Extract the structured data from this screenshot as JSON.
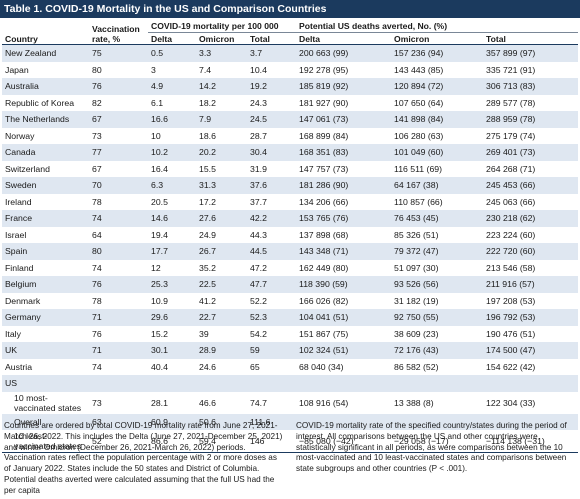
{
  "title": "Table 1. COVID-19 Mortality in the US and Comparison Countries",
  "headers": {
    "country": "Country",
    "vaccination": "Vaccination rate, %",
    "mortality_group": "COVID-19 mortality per 100 000",
    "averted_group": "Potential US deaths averted, No. (%)",
    "sub": [
      "Delta",
      "Omicron",
      "Total",
      "Delta",
      "Omicron",
      "Total"
    ]
  },
  "rows": [
    {
      "country": "New Zealand",
      "vax": "75",
      "d": "0.5",
      "o": "3.3",
      "t": "3.7",
      "ad": "200 663 (99)",
      "ao": "157 236 (94)",
      "at": "357 899 (97)"
    },
    {
      "country": "Japan",
      "vax": "80",
      "d": "3",
      "o": "7.4",
      "t": "10.4",
      "ad": "192 278 (95)",
      "ao": "143 443 (85)",
      "at": "335 721 (91)"
    },
    {
      "country": "Australia",
      "vax": "76",
      "d": "4.9",
      "o": "14.2",
      "t": "19.2",
      "ad": "185 819 (92)",
      "ao": "120 894 (72)",
      "at": "306 713 (83)"
    },
    {
      "country": "Republic of Korea",
      "vax": "82",
      "d": "6.1",
      "o": "18.2",
      "t": "24.3",
      "ad": "181 927 (90)",
      "ao": "107 650 (64)",
      "at": "289 577 (78)"
    },
    {
      "country": "The Netherlands",
      "vax": "67",
      "d": "16.6",
      "o": "7.9",
      "t": "24.5",
      "ad": "147 061 (73)",
      "ao": "141 898 (84)",
      "at": "288 959 (78)"
    },
    {
      "country": "Norway",
      "vax": "73",
      "d": "10",
      "o": "18.6",
      "t": "28.7",
      "ad": "168 899 (84)",
      "ao": "106 280 (63)",
      "at": "275 179 (74)"
    },
    {
      "country": "Canada",
      "vax": "77",
      "d": "10.2",
      "o": "20.2",
      "t": "30.4",
      "ad": "168 351 (83)",
      "ao": "101 049 (60)",
      "at": "269 401 (73)"
    },
    {
      "country": "Switzerland",
      "vax": "67",
      "d": "16.4",
      "o": "15.5",
      "t": "31.9",
      "ad": "147 757 (73)",
      "ao": "116 511 (69)",
      "at": "264 268 (71)"
    },
    {
      "country": "Sweden",
      "vax": "70",
      "d": "6.3",
      "o": "31.3",
      "t": "37.6",
      "ad": "181 286 (90)",
      "ao": "64 167 (38)",
      "at": "245 453 (66)"
    },
    {
      "country": "Ireland",
      "vax": "78",
      "d": "20.5",
      "o": "17.2",
      "t": "37.7",
      "ad": "134 206 (66)",
      "ao": "110 857 (66)",
      "at": "245 063 (66)"
    },
    {
      "country": "France",
      "vax": "74",
      "d": "14.6",
      "o": "27.6",
      "t": "42.2",
      "ad": "153 765 (76)",
      "ao": "76 453 (45)",
      "at": "230 218 (62)"
    },
    {
      "country": "Israel",
      "vax": "64",
      "d": "19.4",
      "o": "24.9",
      "t": "44.3",
      "ad": "137 898 (68)",
      "ao": "85 326 (51)",
      "at": "223 224 (60)"
    },
    {
      "country": "Spain",
      "vax": "80",
      "d": "17.7",
      "o": "26.7",
      "t": "44.5",
      "ad": "143 348 (71)",
      "ao": "79 372 (47)",
      "at": "222 720 (60)"
    },
    {
      "country": "Finland",
      "vax": "74",
      "d": "12",
      "o": "35.2",
      "t": "47.2",
      "ad": "162 449 (80)",
      "ao": "51 097 (30)",
      "at": "213 546 (58)"
    },
    {
      "country": "Belgium",
      "vax": "76",
      "d": "25.3",
      "o": "22.5",
      "t": "47.7",
      "ad": "118 390 (59)",
      "ao": "93 526 (56)",
      "at": "211 916 (57)"
    },
    {
      "country": "Denmark",
      "vax": "78",
      "d": "10.9",
      "o": "41.2",
      "t": "52.2",
      "ad": "166 026 (82)",
      "ao": "31 182 (19)",
      "at": "197 208 (53)"
    },
    {
      "country": "Germany",
      "vax": "71",
      "d": "29.6",
      "o": "22.7",
      "t": "52.3",
      "ad": "104 041 (51)",
      "ao": "92 750 (55)",
      "at": "196 792 (53)"
    },
    {
      "country": "Italy",
      "vax": "76",
      "d": "15.2",
      "o": "39",
      "t": "54.2",
      "ad": "151 867 (75)",
      "ao": "38 609 (23)",
      "at": "190 476 (51)"
    },
    {
      "country": "UK",
      "vax": "71",
      "d": "30.1",
      "o": "28.9",
      "t": "59",
      "ad": "102 324 (51)",
      "ao": "72 176 (43)",
      "at": "174 500 (47)"
    },
    {
      "country": "Austria",
      "vax": "74",
      "d": "40.4",
      "o": "24.6",
      "t": "65",
      "ad": "68 040 (34)",
      "ao": "86 582 (52)",
      "at": "154 622 (42)"
    }
  ],
  "us": {
    "label": "US",
    "rows": [
      {
        "country": "10 most-vaccinated states",
        "vax": "73",
        "d": "28.1",
        "o": "46.6",
        "t": "74.7",
        "ad": "108 916 (54)",
        "ao": "13 388 (8)",
        "at": "122 304 (33)"
      },
      {
        "country": "Overall",
        "vax": "63",
        "d": "60.9",
        "o": "50.6",
        "t": "111.6",
        "ad": "",
        "ao": "",
        "at": ""
      },
      {
        "country": "10 least-vaccinated states",
        "vax": "52",
        "d": "86.6",
        "o": "59.4",
        "t": "146",
        "ad": "−85 080 (−42)",
        "ao": "−29 058 (−17)",
        "at": "−114 138 (−31)"
      }
    ]
  },
  "notes": {
    "left": "Countries are ordered by total COVID-19 mortality rate from June 27, 2021-March 26, 2022. This includes the Delta (June 27, 2021-December 25, 2021) and winter Omicron (December 26, 2021-March 26, 2022) periods. Vaccination rates reflect the population percentage with 2 or more doses as of January 2022. States include the 50 states and District of Columbia. Potential deaths averted were calculated assuming that the full US had the per capita",
    "right": "COVID-19 mortality rate of the specified country/states during the period of interest. All comparisons between the US and other countries were statistically significant in all periods, as were comparisons between the 10 most-vaccinated and 10 least-vaccinated states and comparisons between state subgroups and other countries (P < .001)."
  }
}
